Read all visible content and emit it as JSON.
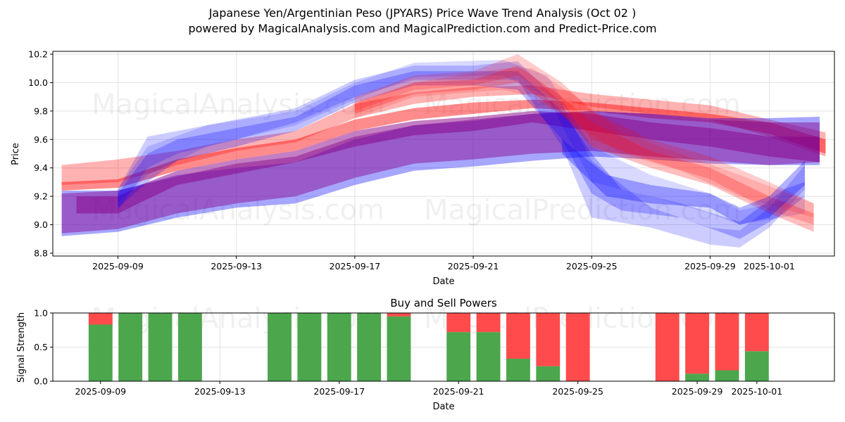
{
  "header": {
    "title": "Japanese Yen/Argentinian Peso (JPYARS) Price Wave Trend Analysis (Oct 02 )",
    "subtitle": "powered by MagicalAnalysis.com and MagicalPrediction.com and Predict-Price.com"
  },
  "watermarks": [
    "MagicalAnalysis.com",
    "MagicalPrediction.com"
  ],
  "chart_data": [
    {
      "type": "area",
      "title": "",
      "xlabel": "Date",
      "ylabel": "Price",
      "x_origin_date": "2025-09-09",
      "xlim_days": [
        -2.2,
        24.2
      ],
      "ylim": [
        8.78,
        10.22
      ],
      "yticks": [
        8.8,
        9.0,
        9.2,
        9.4,
        9.6,
        9.8,
        10.0,
        10.2
      ],
      "ytick_labels": [
        "8.8",
        "9.0",
        "9.2",
        "9.4",
        "9.6",
        "9.8",
        "10.0",
        "10.2"
      ],
      "xticks_days": [
        0,
        4,
        8,
        12,
        16,
        20,
        22
      ],
      "xtick_labels": [
        "2025-09-09",
        "2025-09-13",
        "2025-09-17",
        "2025-09-21",
        "2025-09-25",
        "2025-09-29",
        "2025-10-01"
      ],
      "grid": true,
      "colors": {
        "red": "#ff0000",
        "blue": "#0000ff",
        "purple": "#880088"
      },
      "bands": [
        {
          "color": "red",
          "opacity": 0.3,
          "points": [
            [
              -1.9,
              9.28,
              9.42
            ],
            [
              0,
              9.3,
              9.46
            ],
            [
              2,
              9.42,
              9.52
            ],
            [
              4,
              9.52,
              9.6
            ],
            [
              6,
              9.58,
              9.66
            ],
            [
              8,
              9.75,
              9.85
            ],
            [
              10,
              9.85,
              9.93
            ],
            [
              12,
              9.9,
              9.97
            ],
            [
              14,
              9.92,
              9.98
            ],
            [
              16,
              9.83,
              9.92
            ],
            [
              18,
              9.78,
              9.88
            ],
            [
              20,
              9.74,
              9.84
            ],
            [
              22,
              9.62,
              9.74
            ],
            [
              23.9,
              9.48,
              9.65
            ]
          ]
        },
        {
          "color": "red",
          "opacity": 0.45,
          "points": [
            [
              -1.9,
              9.24,
              9.3
            ],
            [
              0,
              9.26,
              9.32
            ],
            [
              2,
              9.38,
              9.46
            ],
            [
              4,
              9.46,
              9.54
            ],
            [
              6,
              9.52,
              9.6
            ],
            [
              8,
              9.66,
              9.74
            ],
            [
              10,
              9.74,
              9.82
            ],
            [
              12,
              9.78,
              9.86
            ],
            [
              14,
              9.82,
              9.88
            ],
            [
              16,
              9.8,
              9.86
            ],
            [
              18,
              9.75,
              9.82
            ],
            [
              20,
              9.72,
              9.78
            ],
            [
              22,
              9.64,
              9.72
            ],
            [
              23.9,
              9.5,
              9.6
            ]
          ]
        },
        {
          "color": "blue",
          "opacity": 0.35,
          "points": [
            [
              -1.9,
              8.92,
              9.24
            ],
            [
              0,
              8.95,
              9.24
            ],
            [
              2,
              9.05,
              9.35
            ],
            [
              4,
              9.12,
              9.4
            ],
            [
              6,
              9.15,
              9.44
            ],
            [
              8,
              9.28,
              9.6
            ],
            [
              10,
              9.38,
              9.7
            ],
            [
              12,
              9.41,
              9.73
            ],
            [
              14,
              9.45,
              9.78
            ],
            [
              16,
              9.48,
              9.8
            ],
            [
              18,
              9.46,
              9.78
            ],
            [
              20,
              9.43,
              9.75
            ],
            [
              22,
              9.42,
              9.75
            ],
            [
              23.7,
              9.42,
              9.76
            ]
          ]
        },
        {
          "color": "purple",
          "opacity": 0.45,
          "points": [
            [
              -1.9,
              8.94,
              9.22
            ],
            [
              0,
              8.97,
              9.24
            ],
            [
              2,
              9.08,
              9.34
            ],
            [
              4,
              9.15,
              9.43
            ],
            [
              6,
              9.2,
              9.48
            ],
            [
              8,
              9.33,
              9.62
            ],
            [
              10,
              9.43,
              9.7
            ],
            [
              12,
              9.46,
              9.74
            ],
            [
              14,
              9.5,
              9.78
            ],
            [
              16,
              9.52,
              9.8
            ],
            [
              18,
              9.48,
              9.78
            ],
            [
              20,
              9.45,
              9.74
            ],
            [
              22,
              9.42,
              9.72
            ],
            [
              23.7,
              9.44,
              9.72
            ]
          ]
        },
        {
          "color": "purple",
          "opacity": 0.5,
          "points": [
            [
              -1.4,
              9.08,
              9.2
            ],
            [
              0,
              9.08,
              9.2
            ],
            [
              1,
              9.18,
              9.3
            ],
            [
              2,
              9.28,
              9.38
            ],
            [
              4,
              9.36,
              9.46
            ],
            [
              6,
              9.44,
              9.52
            ],
            [
              8,
              9.55,
              9.66
            ],
            [
              10,
              9.63,
              9.73
            ],
            [
              12,
              9.66,
              9.76
            ],
            [
              14,
              9.72,
              9.8
            ],
            [
              16,
              9.66,
              9.78
            ],
            [
              18,
              9.6,
              9.72
            ],
            [
              20,
              9.55,
              9.68
            ],
            [
              22,
              9.48,
              9.62
            ],
            [
              23.7,
              9.44,
              9.62
            ]
          ]
        },
        {
          "color": "blue",
          "opacity": 0.2,
          "points": [
            [
              0,
              9.1,
              9.25
            ],
            [
              1,
              9.4,
              9.62
            ],
            [
              2,
              9.5,
              9.66
            ],
            [
              4,
              9.6,
              9.74
            ],
            [
              6,
              9.72,
              9.82
            ],
            [
              8,
              9.9,
              10.02
            ],
            [
              10,
              10.02,
              10.12
            ],
            [
              12,
              10.02,
              10.12
            ],
            [
              13.5,
              10.02,
              10.15
            ],
            [
              15,
              9.55,
              9.85
            ],
            [
              16,
              9.05,
              9.45
            ],
            [
              18,
              8.98,
              9.12
            ],
            [
              20,
              8.86,
              8.98
            ],
            [
              21,
              8.84,
              8.96
            ],
            [
              22,
              8.98,
              9.12
            ],
            [
              23.2,
              9.25,
              9.42
            ]
          ]
        },
        {
          "color": "blue",
          "opacity": 0.25,
          "points": [
            [
              0,
              9.12,
              9.22
            ],
            [
              1,
              9.3,
              9.5
            ],
            [
              2,
              9.45,
              9.6
            ],
            [
              4,
              9.55,
              9.68
            ],
            [
              6,
              9.66,
              9.76
            ],
            [
              8,
              9.86,
              9.98
            ],
            [
              10,
              9.98,
              10.08
            ],
            [
              12,
              9.98,
              10.08
            ],
            [
              13.5,
              9.95,
              10.08
            ],
            [
              15,
              9.6,
              9.8
            ],
            [
              16,
              9.22,
              9.5
            ],
            [
              17,
              9.1,
              9.25
            ],
            [
              19,
              9.05,
              9.15
            ],
            [
              21,
              8.9,
              9.02
            ],
            [
              22.5,
              9.08,
              9.25
            ],
            [
              23.2,
              9.2,
              9.3
            ]
          ]
        },
        {
          "color": "blue",
          "opacity": 0.15,
          "points": [
            [
              0,
              9.15,
              9.25
            ],
            [
              1,
              9.35,
              9.55
            ],
            [
              3,
              9.55,
              9.7
            ],
            [
              6,
              9.7,
              9.8
            ],
            [
              8,
              9.88,
              10.0
            ],
            [
              10,
              10.04,
              10.14
            ],
            [
              13,
              10.05,
              10.16
            ],
            [
              14.5,
              9.9,
              10.05
            ],
            [
              16,
              9.3,
              9.55
            ],
            [
              18,
              9.2,
              9.35
            ],
            [
              20,
              9.08,
              9.22
            ],
            [
              21,
              9.0,
              9.1
            ],
            [
              23.2,
              9.08,
              9.2
            ]
          ]
        },
        {
          "color": "red",
          "opacity": 0.2,
          "points": [
            [
              8,
              9.8,
              9.9
            ],
            [
              10,
              9.95,
              10.05
            ],
            [
              12,
              9.98,
              10.08
            ],
            [
              13.5,
              10.05,
              10.2
            ],
            [
              15,
              9.85,
              10.0
            ],
            [
              16,
              9.6,
              9.8
            ],
            [
              18,
              9.45,
              9.6
            ],
            [
              20,
              9.32,
              9.48
            ],
            [
              22,
              9.1,
              9.3
            ],
            [
              23.5,
              9.0,
              9.15
            ]
          ]
        },
        {
          "color": "red",
          "opacity": 0.25,
          "points": [
            [
              8,
              9.78,
              9.86
            ],
            [
              10,
              9.92,
              10.0
            ],
            [
              12,
              9.95,
              10.02
            ],
            [
              13.5,
              10.0,
              10.12
            ],
            [
              15,
              9.78,
              9.9
            ],
            [
              16,
              9.55,
              9.72
            ],
            [
              18,
              9.4,
              9.52
            ],
            [
              20,
              9.28,
              9.4
            ],
            [
              22,
              9.08,
              9.2
            ],
            [
              23.5,
              8.95,
              9.08
            ]
          ]
        },
        {
          "color": "red",
          "opacity": 0.15,
          "points": [
            [
              8,
              9.75,
              9.85
            ],
            [
              10,
              9.9,
              10.0
            ],
            [
              13,
              9.95,
              10.1
            ],
            [
              14,
              9.9,
              10.1
            ],
            [
              15.5,
              9.7,
              9.9
            ],
            [
              17,
              9.5,
              9.65
            ],
            [
              19,
              9.38,
              9.5
            ],
            [
              21,
              9.2,
              9.35
            ],
            [
              23.5,
              9.05,
              9.15
            ]
          ]
        },
        {
          "color": "blue",
          "opacity": 0.3,
          "points": [
            [
              15,
              9.5,
              9.6
            ],
            [
              16.5,
              9.2,
              9.35
            ],
            [
              18,
              9.15,
              9.28
            ],
            [
              20,
              9.12,
              9.22
            ],
            [
              21,
              9.0,
              9.12
            ],
            [
              22,
              9.05,
              9.2
            ],
            [
              23.2,
              9.28,
              9.45
            ]
          ]
        }
      ]
    },
    {
      "type": "bar",
      "title": "Buy and Sell Powers",
      "xlabel": "Date",
      "ylabel": "Signal Strength",
      "x_origin_date": "2025-09-09",
      "xlim_days": [
        -1.6,
        24.6
      ],
      "ylim": [
        0,
        1.0
      ],
      "yticks": [
        0.0,
        0.5,
        1.0
      ],
      "ytick_labels": [
        "0.0",
        "0.5",
        "1.0"
      ],
      "xticks_days": [
        0,
        4,
        8,
        12,
        16,
        20,
        22
      ],
      "xtick_labels": [
        "2025-09-09",
        "2025-09-13",
        "2025-09-17",
        "2025-09-21",
        "2025-09-25",
        "2025-09-29",
        "2025-10-01"
      ],
      "grid": true,
      "colors": {
        "buy": "#4ca64c",
        "sell": "#ff4b4b"
      },
      "series": [
        {
          "name": "Buy",
          "days": [
            0,
            1,
            2,
            3,
            6,
            7,
            8,
            9,
            10,
            12,
            13,
            14,
            15,
            16,
            19,
            20,
            21,
            22
          ],
          "values": [
            0.83,
            1.0,
            1.0,
            1.0,
            1.0,
            1.0,
            1.0,
            1.0,
            0.95,
            0.72,
            0.72,
            0.33,
            0.22,
            0.0,
            0.0,
            0.11,
            0.16,
            0.44
          ]
        },
        {
          "name": "Sell",
          "days": [
            0,
            1,
            2,
            3,
            6,
            7,
            8,
            9,
            10,
            12,
            13,
            14,
            15,
            16,
            19,
            20,
            21,
            22
          ],
          "values": [
            0.17,
            0.0,
            0.0,
            0.0,
            0.0,
            0.0,
            0.0,
            0.0,
            0.05,
            0.28,
            0.28,
            0.67,
            0.78,
            1.0,
            1.0,
            0.89,
            0.84,
            0.56
          ]
        }
      ]
    }
  ]
}
